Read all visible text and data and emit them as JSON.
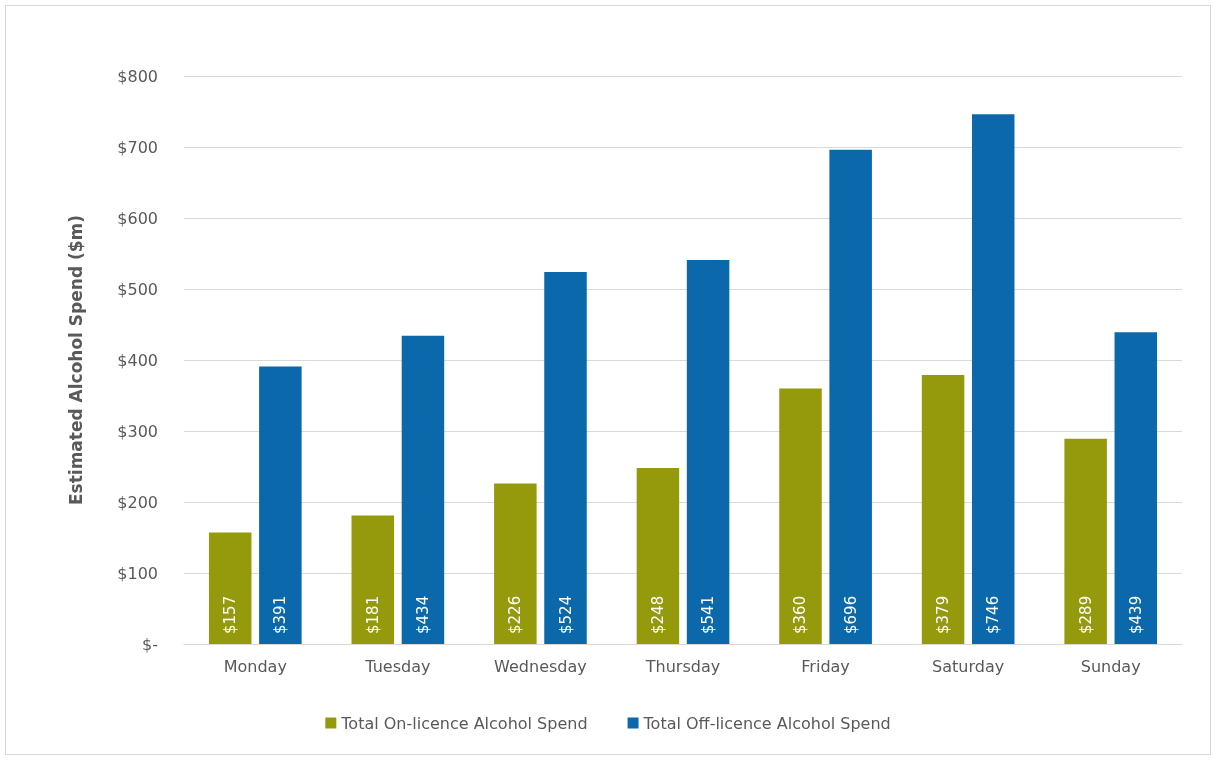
{
  "chart_data": {
    "type": "bar",
    "ylabel": "Estimated Alcohol Spend ($m)",
    "categories": [
      "Monday",
      "Tuesday",
      "Wednesday",
      "Thursday",
      "Friday",
      "Saturday",
      "Sunday"
    ],
    "series": [
      {
        "name": "Total On-licence Alcohol Spend",
        "color": "#949a0c",
        "values": [
          157,
          181,
          226,
          248,
          360,
          379,
          289
        ],
        "value_labels": [
          "$157",
          "$181",
          "$226",
          "$248",
          "$360",
          "$379",
          "$289"
        ]
      },
      {
        "name": "Total Off-licence Alcohol Spend",
        "color": "#0b68ab",
        "values": [
          391,
          434,
          524,
          541,
          696,
          746,
          439
        ],
        "value_labels": [
          "$391",
          "$434",
          "$524",
          "$541",
          "$696",
          "$746",
          "$439"
        ]
      }
    ],
    "ylim": [
      0,
      800
    ],
    "yticks": [
      {
        "value": 0,
        "label": "$-"
      },
      {
        "value": 100,
        "label": "$100"
      },
      {
        "value": 200,
        "label": "$200"
      },
      {
        "value": 300,
        "label": "$300"
      },
      {
        "value": 400,
        "label": "$400"
      },
      {
        "value": 500,
        "label": "$500"
      },
      {
        "value": 600,
        "label": "$600"
      },
      {
        "value": 700,
        "label": "$700"
      },
      {
        "value": 800,
        "label": "$800"
      }
    ],
    "grid": "y",
    "legend": "bottom"
  }
}
